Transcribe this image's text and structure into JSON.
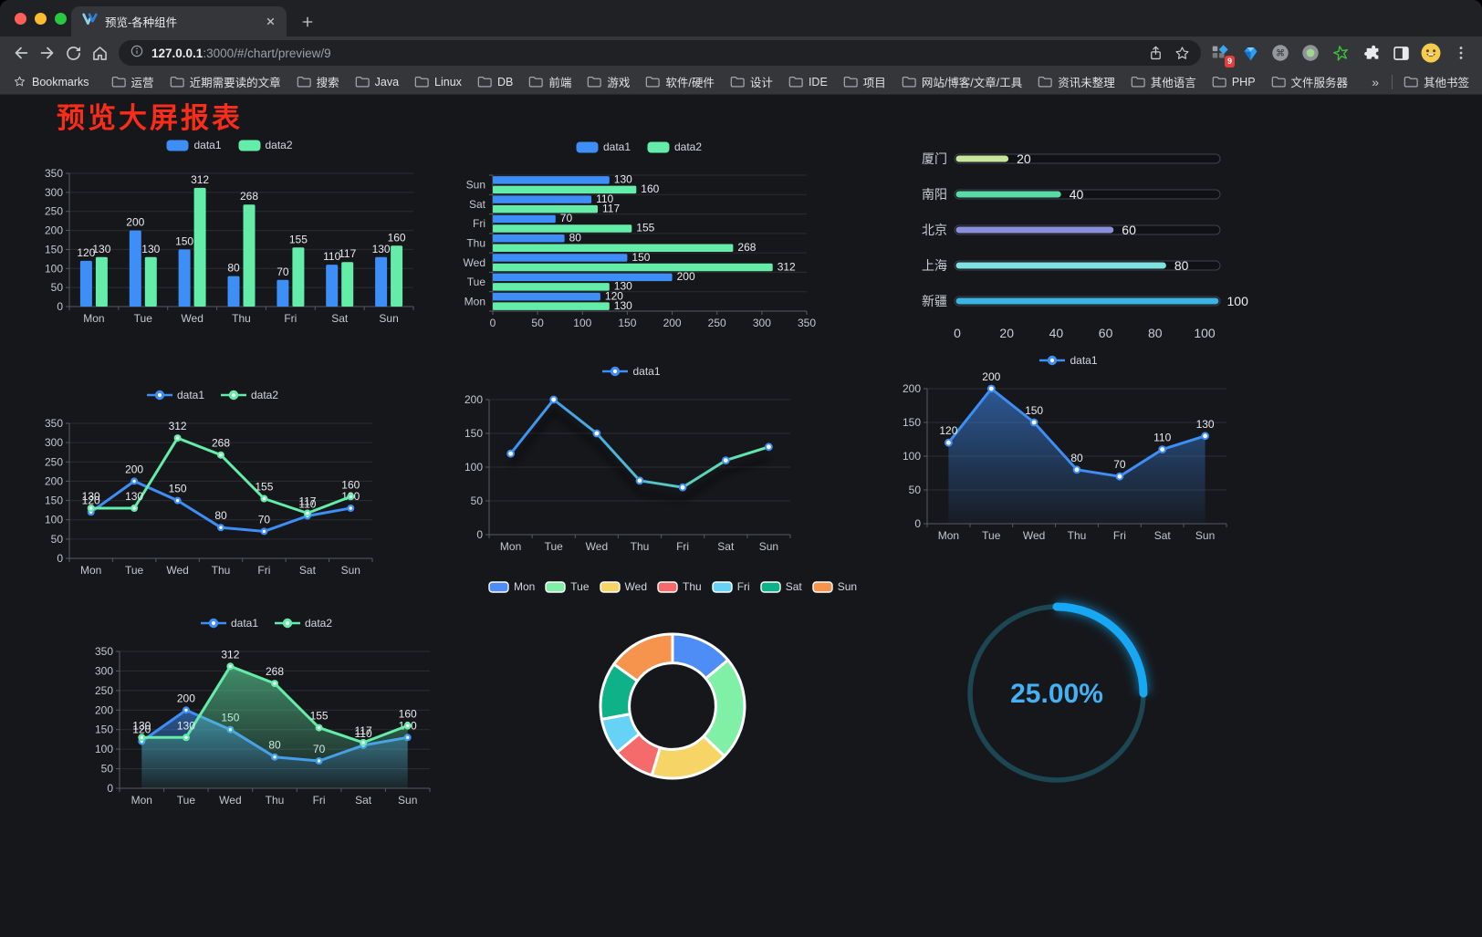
{
  "browser": {
    "tab": {
      "title": "预览-各种组件"
    },
    "url": {
      "host": "127.0.0.1",
      "rest": ":3000/#/chart/preview/9"
    },
    "extensions": {
      "badge": "9"
    },
    "bookmarks": {
      "label": "Bookmarks",
      "folders": [
        "运营",
        "近期需要读的文章",
        "搜索",
        "Java",
        "Linux",
        "DB",
        "前端",
        "游戏",
        "软件/硬件",
        "设计",
        "IDE",
        "项目",
        "网站/博客/文章/工具",
        "资讯未整理",
        "其他语言",
        "PHP",
        "文件服务器"
      ],
      "overflow": "»",
      "other": "其他书签"
    }
  },
  "page": {
    "title": "预览大屏报表",
    "title_color": "#FA2C1A"
  },
  "chart_data": [
    {
      "id": "bar-grouped",
      "type": "bar",
      "categories": [
        "Mon",
        "Tue",
        "Wed",
        "Thu",
        "Fri",
        "Sat",
        "Sun"
      ],
      "series": [
        {
          "name": "data1",
          "color": "#3E8EF7",
          "values": [
            120,
            200,
            150,
            80,
            70,
            110,
            130
          ]
        },
        {
          "name": "data2",
          "color": "#63EDA9",
          "values": [
            130,
            130,
            312,
            268,
            155,
            117,
            160
          ]
        }
      ],
      "ylim": [
        0,
        350
      ],
      "yticks": [
        0,
        50,
        100,
        150,
        200,
        250,
        300,
        350
      ],
      "legend_position": "top",
      "grid": true,
      "value_labels": true
    },
    {
      "id": "bar-horizontal",
      "type": "bar-horizontal",
      "categories": [
        "Mon",
        "Tue",
        "Wed",
        "Thu",
        "Fri",
        "Sat",
        "Sun"
      ],
      "display_order": "Sun top, Mon bottom",
      "series": [
        {
          "name": "data1",
          "color": "#3E8EF7",
          "values": [
            120,
            200,
            150,
            80,
            70,
            110,
            130
          ]
        },
        {
          "name": "data2",
          "color": "#63EDA9",
          "values": [
            130,
            130,
            312,
            268,
            155,
            117,
            160
          ]
        }
      ],
      "xlim": [
        0,
        350
      ],
      "xticks": [
        0,
        50,
        100,
        150,
        200,
        250,
        300,
        350
      ],
      "legend_position": "top",
      "value_labels": true
    },
    {
      "id": "progress",
      "type": "progress",
      "rows": [
        {
          "label": "厦门",
          "value": 20,
          "color": "#C6E79B"
        },
        {
          "label": "南阳",
          "value": 40,
          "color": "#59DBA7"
        },
        {
          "label": "北京",
          "value": 60,
          "color": "#8B90DB"
        },
        {
          "label": "上海",
          "value": 80,
          "color": "#7FE1E0"
        },
        {
          "label": "新疆",
          "value": 100,
          "color": "#3BB3E3"
        }
      ],
      "xlim": [
        0,
        100
      ],
      "xticks": [
        0,
        20,
        40,
        60,
        80,
        100
      ]
    },
    {
      "id": "line-two",
      "type": "line",
      "categories": [
        "Mon",
        "Tue",
        "Wed",
        "Thu",
        "Fri",
        "Sat",
        "Sun"
      ],
      "series": [
        {
          "name": "data1",
          "color": "#3E8EF7",
          "values": [
            120,
            200,
            150,
            80,
            70,
            110,
            130
          ]
        },
        {
          "name": "data2",
          "color": "#63EDA9",
          "values": [
            130,
            130,
            312,
            268,
            155,
            117,
            160
          ]
        }
      ],
      "ylim": [
        0,
        350
      ],
      "yticks": [
        0,
        50,
        100,
        150,
        200,
        250,
        300,
        350
      ],
      "options": {
        "labels": true
      }
    },
    {
      "id": "line-gradient",
      "type": "line",
      "categories": [
        "Mon",
        "Tue",
        "Wed",
        "Thu",
        "Fri",
        "Sat",
        "Sun"
      ],
      "series": [
        {
          "name": "data1",
          "color": "#3E8EF7",
          "color_end": "#63EDA9",
          "values": [
            120,
            200,
            150,
            80,
            70,
            110,
            130
          ]
        }
      ],
      "ylim": [
        0,
        200
      ],
      "yticks": [
        0,
        50,
        100,
        150,
        200
      ],
      "options": {
        "gradient_stroke": true,
        "shadow": true,
        "labels": false,
        "hollow_markers": true
      }
    },
    {
      "id": "line-area",
      "type": "line",
      "categories": [
        "Mon",
        "Tue",
        "Wed",
        "Thu",
        "Fri",
        "Sat",
        "Sun"
      ],
      "series": [
        {
          "name": "data1",
          "color": "#3E8EF7",
          "values": [
            120,
            200,
            150,
            80,
            70,
            110,
            130
          ]
        }
      ],
      "ylim": [
        0,
        200
      ],
      "yticks": [
        0,
        50,
        100,
        150,
        200
      ],
      "options": {
        "area": true,
        "labels": true,
        "hollow_markers": true
      }
    },
    {
      "id": "line-two-area",
      "type": "line",
      "categories": [
        "Mon",
        "Tue",
        "Wed",
        "Thu",
        "Fri",
        "Sat",
        "Sun"
      ],
      "series": [
        {
          "name": "data1",
          "color": "#3E8EF7",
          "values": [
            120,
            200,
            150,
            80,
            70,
            110,
            130
          ]
        },
        {
          "name": "data2",
          "color": "#63EDA9",
          "values": [
            130,
            130,
            312,
            268,
            155,
            117,
            160
          ]
        }
      ],
      "ylim": [
        0,
        350
      ],
      "yticks": [
        0,
        50,
        100,
        150,
        200,
        250,
        300,
        350
      ],
      "options": {
        "area": true,
        "labels": true
      }
    },
    {
      "id": "donut",
      "type": "pie",
      "slices": [
        {
          "label": "Mon",
          "value": 120,
          "color": "#4E8CF6"
        },
        {
          "label": "Tue",
          "value": 200,
          "color": "#7FF0A6"
        },
        {
          "label": "Wed",
          "value": 150,
          "color": "#F6D566"
        },
        {
          "label": "Thu",
          "value": 80,
          "color": "#F56A6A"
        },
        {
          "label": "Fri",
          "value": 70,
          "color": "#66D3F6"
        },
        {
          "label": "Sat",
          "value": 110,
          "color": "#0FB189"
        },
        {
          "label": "Sun",
          "value": 130,
          "color": "#F6944D"
        }
      ],
      "inner_radius_ratio": 0.6,
      "legend_position": "top"
    },
    {
      "id": "gauge",
      "type": "gauge",
      "value": 25,
      "display": "25.00%",
      "arc_color": "#17A8F4",
      "track_color": "#1C4652",
      "text_color": "#45B1F4"
    }
  ]
}
